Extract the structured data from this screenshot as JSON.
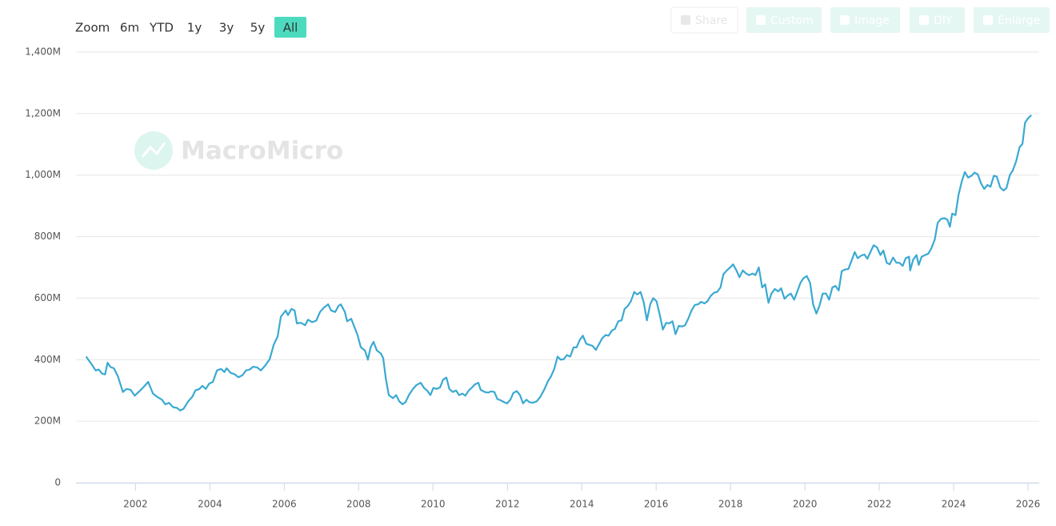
{
  "ui": {
    "zoom_label": "Zoom",
    "range_buttons": [
      "6m",
      "YTD",
      "1y",
      "3y",
      "5y",
      "All"
    ],
    "active_range": 5,
    "toolbar": [
      "Share",
      "Custom",
      "Image",
      "DIY",
      "Enlarge"
    ],
    "watermark": "MacroMicro"
  },
  "chart_data": {
    "type": "line",
    "grid": true,
    "xlim": [
      2000.4,
      2026.3
    ],
    "xticks": [
      2002,
      2004,
      2006,
      2008,
      2010,
      2012,
      2014,
      2016,
      2018,
      2020,
      2022,
      2024,
      2026
    ],
    "ylim": [
      0,
      1400
    ],
    "yticks": [
      0,
      {
        "value": 200,
        "label": "200M"
      },
      {
        "value": 400,
        "label": "400M"
      },
      {
        "value": 600,
        "label": "600M"
      },
      {
        "value": 800,
        "label": "800M"
      },
      {
        "value": 1000,
        "label": "1,000M"
      },
      {
        "value": 1200,
        "label": "1,200M"
      },
      {
        "value": 1400,
        "label": "1,400M"
      }
    ],
    "x": [
      2000.67,
      2000.82,
      2000.93,
      2001.01,
      2001.1,
      2001.18,
      2001.25,
      2001.33,
      2001.42,
      2001.53,
      2001.66,
      2001.76,
      2001.87,
      2001.98,
      2002.09,
      2002.21,
      2002.34,
      2002.47,
      2002.6,
      2002.71,
      2002.8,
      2002.9,
      2003.01,
      2003.12,
      2003.2,
      2003.29,
      2003.42,
      2003.53,
      2003.61,
      2003.72,
      2003.8,
      2003.89,
      2003.98,
      2004.08,
      2004.19,
      2004.3,
      2004.39,
      2004.45,
      2004.56,
      2004.66,
      2004.77,
      2004.88,
      2004.97,
      2005.07,
      2005.16,
      2005.27,
      2005.37,
      2005.48,
      2005.61,
      2005.72,
      2005.82,
      2005.91,
      2006.04,
      2006.1,
      2006.19,
      2006.28,
      2006.34,
      2006.45,
      2006.56,
      2006.64,
      2006.75,
      2006.86,
      2006.96,
      2007.07,
      2007.18,
      2007.26,
      2007.37,
      2007.46,
      2007.52,
      2007.63,
      2007.69,
      2007.8,
      2007.89,
      2007.97,
      2008.06,
      2008.17,
      2008.25,
      2008.32,
      2008.4,
      2008.49,
      2008.6,
      2008.66,
      2008.73,
      2008.81,
      2008.92,
      2009.01,
      2009.09,
      2009.18,
      2009.26,
      2009.35,
      2009.46,
      2009.56,
      2009.67,
      2009.76,
      2009.84,
      2009.93,
      2010.01,
      2010.1,
      2010.19,
      2010.27,
      2010.36,
      2010.44,
      2010.53,
      2010.62,
      2010.7,
      2010.79,
      2010.87,
      2010.96,
      2011.05,
      2011.13,
      2011.22,
      2011.28,
      2011.39,
      2011.48,
      2011.56,
      2011.65,
      2011.73,
      2011.82,
      2011.91,
      2011.99,
      2012.08,
      2012.16,
      2012.25,
      2012.34,
      2012.42,
      2012.51,
      2012.59,
      2012.68,
      2012.79,
      2012.89,
      2013.0,
      2013.09,
      2013.17,
      2013.26,
      2013.35,
      2013.43,
      2013.52,
      2013.6,
      2013.69,
      2013.78,
      2013.86,
      2013.95,
      2014.03,
      2014.12,
      2014.21,
      2014.29,
      2014.38,
      2014.46,
      2014.55,
      2014.64,
      2014.72,
      2014.81,
      2014.89,
      2014.98,
      2015.07,
      2015.15,
      2015.24,
      2015.32,
      2015.41,
      2015.49,
      2015.58,
      2015.67,
      2015.75,
      2015.84,
      2015.92,
      2016.01,
      2016.1,
      2016.18,
      2016.27,
      2016.35,
      2016.44,
      2016.52,
      2016.61,
      2016.7,
      2016.78,
      2016.87,
      2016.95,
      2017.04,
      2017.13,
      2017.21,
      2017.3,
      2017.38,
      2017.47,
      2017.56,
      2017.64,
      2017.73,
      2017.81,
      2017.9,
      2017.99,
      2018.07,
      2018.16,
      2018.24,
      2018.33,
      2018.42,
      2018.5,
      2018.59,
      2018.67,
      2018.76,
      2018.85,
      2018.93,
      2019.02,
      2019.1,
      2019.19,
      2019.28,
      2019.36,
      2019.45,
      2019.53,
      2019.62,
      2019.71,
      2019.79,
      2019.88,
      2019.96,
      2020.05,
      2020.14,
      2020.22,
      2020.31,
      2020.39,
      2020.48,
      2020.57,
      2020.65,
      2020.74,
      2020.82,
      2020.91,
      2020.99,
      2021.08,
      2021.17,
      2021.25,
      2021.34,
      2021.42,
      2021.51,
      2021.6,
      2021.68,
      2021.77,
      2021.85,
      2021.94,
      2022.03,
      2022.11,
      2022.2,
      2022.28,
      2022.37,
      2022.46,
      2022.54,
      2022.63,
      2022.71,
      2022.8,
      2022.83,
      2022.91,
      2023.0,
      2023.06,
      2023.14,
      2023.23,
      2023.32,
      2023.4,
      2023.49,
      2023.57,
      2023.66,
      2023.75,
      2023.83,
      2023.9,
      2023.96,
      2024.05,
      2024.13,
      2024.22,
      2024.3,
      2024.39,
      2024.48,
      2024.56,
      2024.65,
      2024.73,
      2024.82,
      2024.91,
      2024.99,
      2025.08,
      2025.16,
      2025.25,
      2025.34,
      2025.42,
      2025.51,
      2025.59,
      2025.68,
      2025.77,
      2025.85,
      2025.92,
      2026.0,
      2026.09
    ],
    "series": [
      {
        "color": "#3aa9d2",
        "values": [
          410,
          385,
          365,
          368,
          355,
          352,
          390,
          376,
          372,
          345,
          295,
          305,
          302,
          283,
          296,
          310,
          328,
          290,
          278,
          270,
          255,
          260,
          246,
          243,
          235,
          240,
          265,
          280,
          300,
          305,
          315,
          305,
          322,
          328,
          365,
          370,
          360,
          372,
          357,
          353,
          343,
          350,
          365,
          368,
          377,
          375,
          365,
          380,
          402,
          450,
          475,
          540,
          560,
          545,
          565,
          560,
          518,
          520,
          512,
          530,
          522,
          527,
          555,
          570,
          580,
          560,
          555,
          575,
          580,
          555,
          525,
          533,
          505,
          480,
          440,
          430,
          400,
          440,
          458,
          430,
          420,
          405,
          340,
          285,
          275,
          285,
          265,
          255,
          262,
          285,
          305,
          318,
          325,
          308,
          300,
          285,
          308,
          305,
          310,
          335,
          342,
          305,
          295,
          300,
          285,
          290,
          283,
          300,
          310,
          320,
          325,
          302,
          295,
          293,
          297,
          295,
          272,
          268,
          262,
          258,
          270,
          292,
          298,
          285,
          258,
          270,
          262,
          260,
          265,
          280,
          305,
          330,
          345,
          370,
          410,
          400,
          402,
          415,
          410,
          440,
          440,
          465,
          478,
          452,
          448,
          445,
          432,
          450,
          470,
          480,
          478,
          495,
          500,
          525,
          528,
          565,
          575,
          590,
          620,
          612,
          620,
          585,
          528,
          580,
          600,
          590,
          545,
          498,
          520,
          518,
          525,
          483,
          510,
          508,
          512,
          535,
          560,
          578,
          580,
          588,
          583,
          590,
          608,
          618,
          620,
          635,
          678,
          690,
          700,
          710,
          690,
          668,
          690,
          680,
          675,
          680,
          675,
          700,
          635,
          645,
          585,
          615,
          630,
          622,
          632,
          598,
          608,
          615,
          595,
          620,
          650,
          665,
          672,
          650,
          580,
          550,
          575,
          615,
          615,
          595,
          635,
          640,
          625,
          688,
          693,
          695,
          720,
          750,
          730,
          738,
          742,
          728,
          752,
          772,
          765,
          740,
          755,
          715,
          710,
          732,
          715,
          715,
          705,
          730,
          735,
          690,
          725,
          740,
          708,
          735,
          740,
          745,
          762,
          790,
          845,
          858,
          860,
          855,
          832,
          875,
          870,
          935,
          980,
          1010,
          992,
          998,
          1008,
          1002,
          975,
          955,
          968,
          962,
          998,
          995,
          960,
          950,
          958,
          1000,
          1015,
          1045,
          1090,
          1102,
          1170,
          1185,
          1195
        ]
      }
    ]
  }
}
